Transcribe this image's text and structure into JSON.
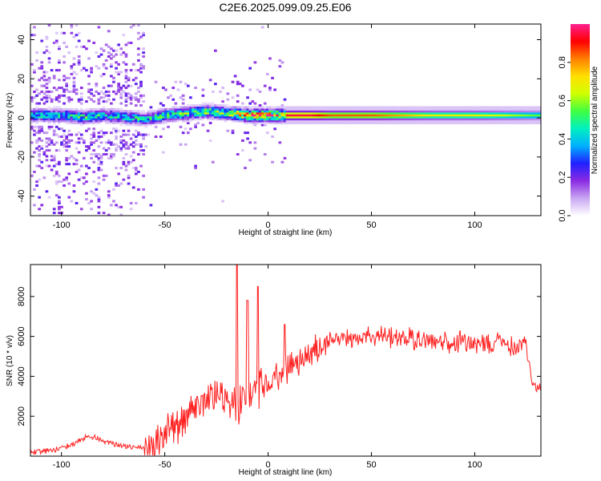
{
  "title": "C2E6.2025.099.09.25.E06",
  "chart_data": [
    {
      "type": "heatmap",
      "title": "C2E6.2025.099.09.25.E06",
      "xlabel": "Height of straight line (km)",
      "ylabel": "Frequency (Hz)",
      "xlim": [
        -115,
        132
      ],
      "ylim": [
        -50,
        48
      ],
      "x_ticks": [
        -100,
        -50,
        0,
        50,
        100
      ],
      "x_tick_labels": [
        "-100",
        "-50",
        "0",
        "50",
        "100"
      ],
      "y_ticks": [
        -40,
        -20,
        0,
        20,
        40
      ],
      "y_tick_labels": [
        "-40",
        "-20",
        "0",
        "20",
        "40"
      ],
      "colorbar": {
        "label": "Normalized spectral amplitude",
        "range": [
          0,
          1
        ],
        "ticks": [
          0.0,
          0.2,
          0.4,
          0.6,
          0.8
        ],
        "tick_labels": [
          "0.0",
          "0.2",
          "0.4",
          "0.6",
          "0.8"
        ],
        "colors": [
          "#ffffff",
          "#c9a6f2",
          "#8a2be2",
          "#2020ff",
          "#00b0ff",
          "#00f0c0",
          "#40ff40",
          "#d0ff00",
          "#ffe000",
          "#ff8000",
          "#ff0000",
          "#ff2090"
        ]
      },
      "ridge": {
        "description_free": true,
        "x": [
          -110,
          -100,
          -90,
          -80,
          -70,
          -60,
          -50,
          -40,
          -30,
          -20,
          -10,
          0,
          10,
          20,
          30,
          40,
          50,
          60,
          70,
          80,
          90,
          100,
          110,
          120,
          130
        ],
        "center_hz": [
          1,
          1,
          0,
          1,
          0,
          -1,
          1,
          2,
          3,
          2,
          1,
          1,
          1,
          1,
          1,
          1,
          1,
          1,
          1,
          1,
          1,
          1,
          1,
          1,
          1
        ],
        "peak_amplitude": [
          0.45,
          0.45,
          0.5,
          0.45,
          0.45,
          0.45,
          0.5,
          0.55,
          0.6,
          0.6,
          0.85,
          0.85,
          0.95,
          0.95,
          0.85,
          0.85,
          0.85,
          0.8,
          0.75,
          0.7,
          0.7,
          0.7,
          0.65,
          0.6,
          0.55
        ]
      }
    },
    {
      "type": "line",
      "xlabel": "Height of straight line (km)",
      "ylabel": "SNR (10 * v/v)",
      "xlim": [
        -115,
        132
      ],
      "ylim": [
        0,
        9600
      ],
      "x_ticks": [
        -100,
        -50,
        0,
        50,
        100
      ],
      "x_tick_labels": [
        "-100",
        "-50",
        "0",
        "50",
        "100"
      ],
      "y_ticks": [
        2000,
        4000,
        6000,
        8000
      ],
      "y_tick_labels": [
        "2000",
        "4000",
        "6000",
        "8000"
      ],
      "color": "#ff2020",
      "series": [
        {
          "name": "SNR",
          "x": [
            -115,
            -110,
            -105,
            -100,
            -95,
            -90,
            -85,
            -80,
            -75,
            -70,
            -65,
            -60,
            -55,
            -50,
            -45,
            -40,
            -35,
            -30,
            -25,
            -20,
            -15,
            -10,
            -5,
            0,
            5,
            10,
            15,
            20,
            25,
            30,
            35,
            40,
            45,
            50,
            55,
            60,
            65,
            70,
            75,
            80,
            85,
            90,
            95,
            100,
            105,
            110,
            115,
            120,
            125,
            128,
            130,
            132
          ],
          "values": [
            300,
            350,
            400,
            500,
            700,
            1000,
            1100,
            900,
            700,
            600,
            500,
            600,
            1200,
            1800,
            2200,
            2600,
            3000,
            3500,
            3800,
            3500,
            3200,
            3600,
            4000,
            4300,
            4700,
            5000,
            5300,
            5700,
            6000,
            6300,
            6200,
            6300,
            6400,
            6400,
            6400,
            6350,
            6300,
            6300,
            6200,
            6200,
            6150,
            6100,
            6100,
            6050,
            6000,
            6000,
            5950,
            5900,
            5900,
            3700,
            3600,
            3700
          ],
          "peaks": [
            {
              "x": -15,
              "value": 9600
            },
            {
              "x": -5,
              "value": 8500
            },
            {
              "x": -10,
              "value": 7800
            },
            {
              "x": 8,
              "value": 6600
            }
          ]
        }
      ]
    }
  ]
}
